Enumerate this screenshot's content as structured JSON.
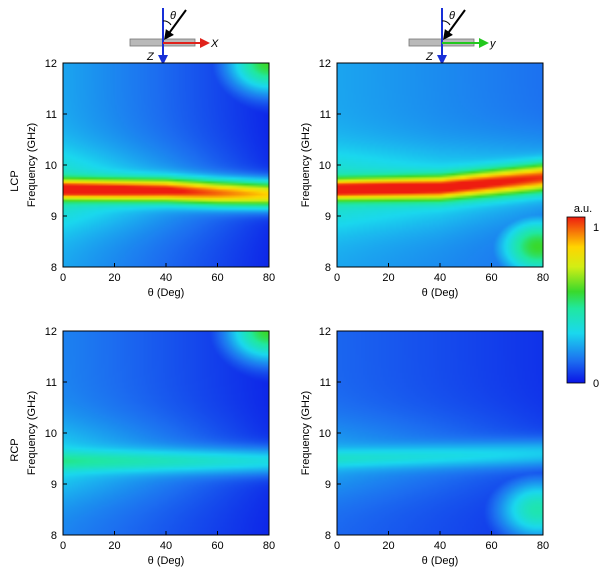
{
  "figure": {
    "row_labels": [
      "LCP",
      "RCP"
    ],
    "inset_left": {
      "angle_label": "θ",
      "axis_z": "Z",
      "axis_in_plane": "X",
      "in_plane_color": "#e0221b"
    },
    "inset_right": {
      "angle_label": "θ",
      "axis_z": "Z",
      "axis_in_plane": "y",
      "in_plane_color": "#22c81e"
    },
    "colorbar": {
      "unit": "a.u.",
      "max_label": "1",
      "min_label": "0"
    }
  },
  "chart_data": [
    {
      "type": "heatmap",
      "panel": "top-left",
      "xlabel": "θ (Deg)",
      "ylabel": "Frequency (GHz)",
      "xlim": [
        0,
        80
      ],
      "ylim": [
        8,
        12
      ],
      "xticks": [
        "0",
        "20",
        "40",
        "60",
        "80"
      ],
      "yticks": [
        "8",
        "9",
        "10",
        "11",
        "12"
      ],
      "ridge": [
        {
          "theta": 0,
          "freq": 9.52
        },
        {
          "theta": 40,
          "freq": 9.5
        },
        {
          "theta": 60,
          "freq": 9.45
        },
        {
          "theta": 80,
          "freq": 9.42
        }
      ],
      "ridge_peak": [
        {
          "theta": 0,
          "value": 1.0
        },
        {
          "theta": 40,
          "value": 0.95
        },
        {
          "theta": 80,
          "value": 0.8
        }
      ],
      "background": {
        "value_at_theta_0": 0.4,
        "value_at_theta_80": 0.05
      },
      "hotspot": {
        "theta": 80,
        "freq": 12,
        "value": 0.55
      }
    },
    {
      "type": "heatmap",
      "panel": "top-right",
      "xlabel": "θ (Deg)",
      "ylabel": "Frequency (GHz)",
      "xlim": [
        0,
        80
      ],
      "ylim": [
        8,
        12
      ],
      "xticks": [
        "0",
        "20",
        "40",
        "60",
        "80"
      ],
      "yticks": [
        "8",
        "9",
        "10",
        "11",
        "12"
      ],
      "ridge": [
        {
          "theta": 0,
          "freq": 9.52
        },
        {
          "theta": 40,
          "freq": 9.55
        },
        {
          "theta": 60,
          "freq": 9.65
        },
        {
          "theta": 80,
          "freq": 9.75
        }
      ],
      "ridge_peak": [
        {
          "theta": 0,
          "value": 1.0
        },
        {
          "theta": 40,
          "value": 0.95
        },
        {
          "theta": 80,
          "value": 0.88
        }
      ],
      "background": {
        "value_at_theta_0": 0.4,
        "value_at_theta_80": 0.25
      },
      "hotspot": {
        "theta": 78,
        "freq": 8.4,
        "value": 0.55
      }
    },
    {
      "type": "heatmap",
      "panel": "bottom-left",
      "xlabel": "θ (Deg)",
      "ylabel": "Frequency (GHz)",
      "xlim": [
        0,
        80
      ],
      "ylim": [
        8,
        12
      ],
      "xticks": [
        "0",
        "20",
        "40",
        "60",
        "80"
      ],
      "yticks": [
        "8",
        "9",
        "10",
        "11",
        "12"
      ],
      "ridge": [
        {
          "theta": 0,
          "freq": 9.45
        },
        {
          "theta": 80,
          "freq": 9.45
        }
      ],
      "ridge_peak": [
        {
          "theta": 0,
          "value": 0.35
        },
        {
          "theta": 80,
          "value": 0.3
        }
      ],
      "background": {
        "value_at_theta_0": 0.3,
        "value_at_theta_80": 0.05
      },
      "hotspot": {
        "theta": 80,
        "freq": 12,
        "value": 0.55
      }
    },
    {
      "type": "heatmap",
      "panel": "bottom-right",
      "xlabel": "θ (Deg)",
      "ylabel": "Frequency (GHz)",
      "xlim": [
        0,
        80
      ],
      "ylim": [
        8,
        12
      ],
      "xticks": [
        "0",
        "20",
        "40",
        "60",
        "80"
      ],
      "yticks": [
        "8",
        "9",
        "10",
        "11",
        "12"
      ],
      "ridge": [
        {
          "theta": 0,
          "freq": 9.5
        },
        {
          "theta": 80,
          "freq": 9.6
        }
      ],
      "ridge_peak": [
        {
          "theta": 0,
          "value": 0.28
        },
        {
          "theta": 80,
          "value": 0.25
        }
      ],
      "background": {
        "value_at_theta_0": 0.22,
        "value_at_theta_80": 0.08
      },
      "hotspot": {
        "theta": 78,
        "freq": 8.5,
        "value": 0.42
      }
    }
  ]
}
